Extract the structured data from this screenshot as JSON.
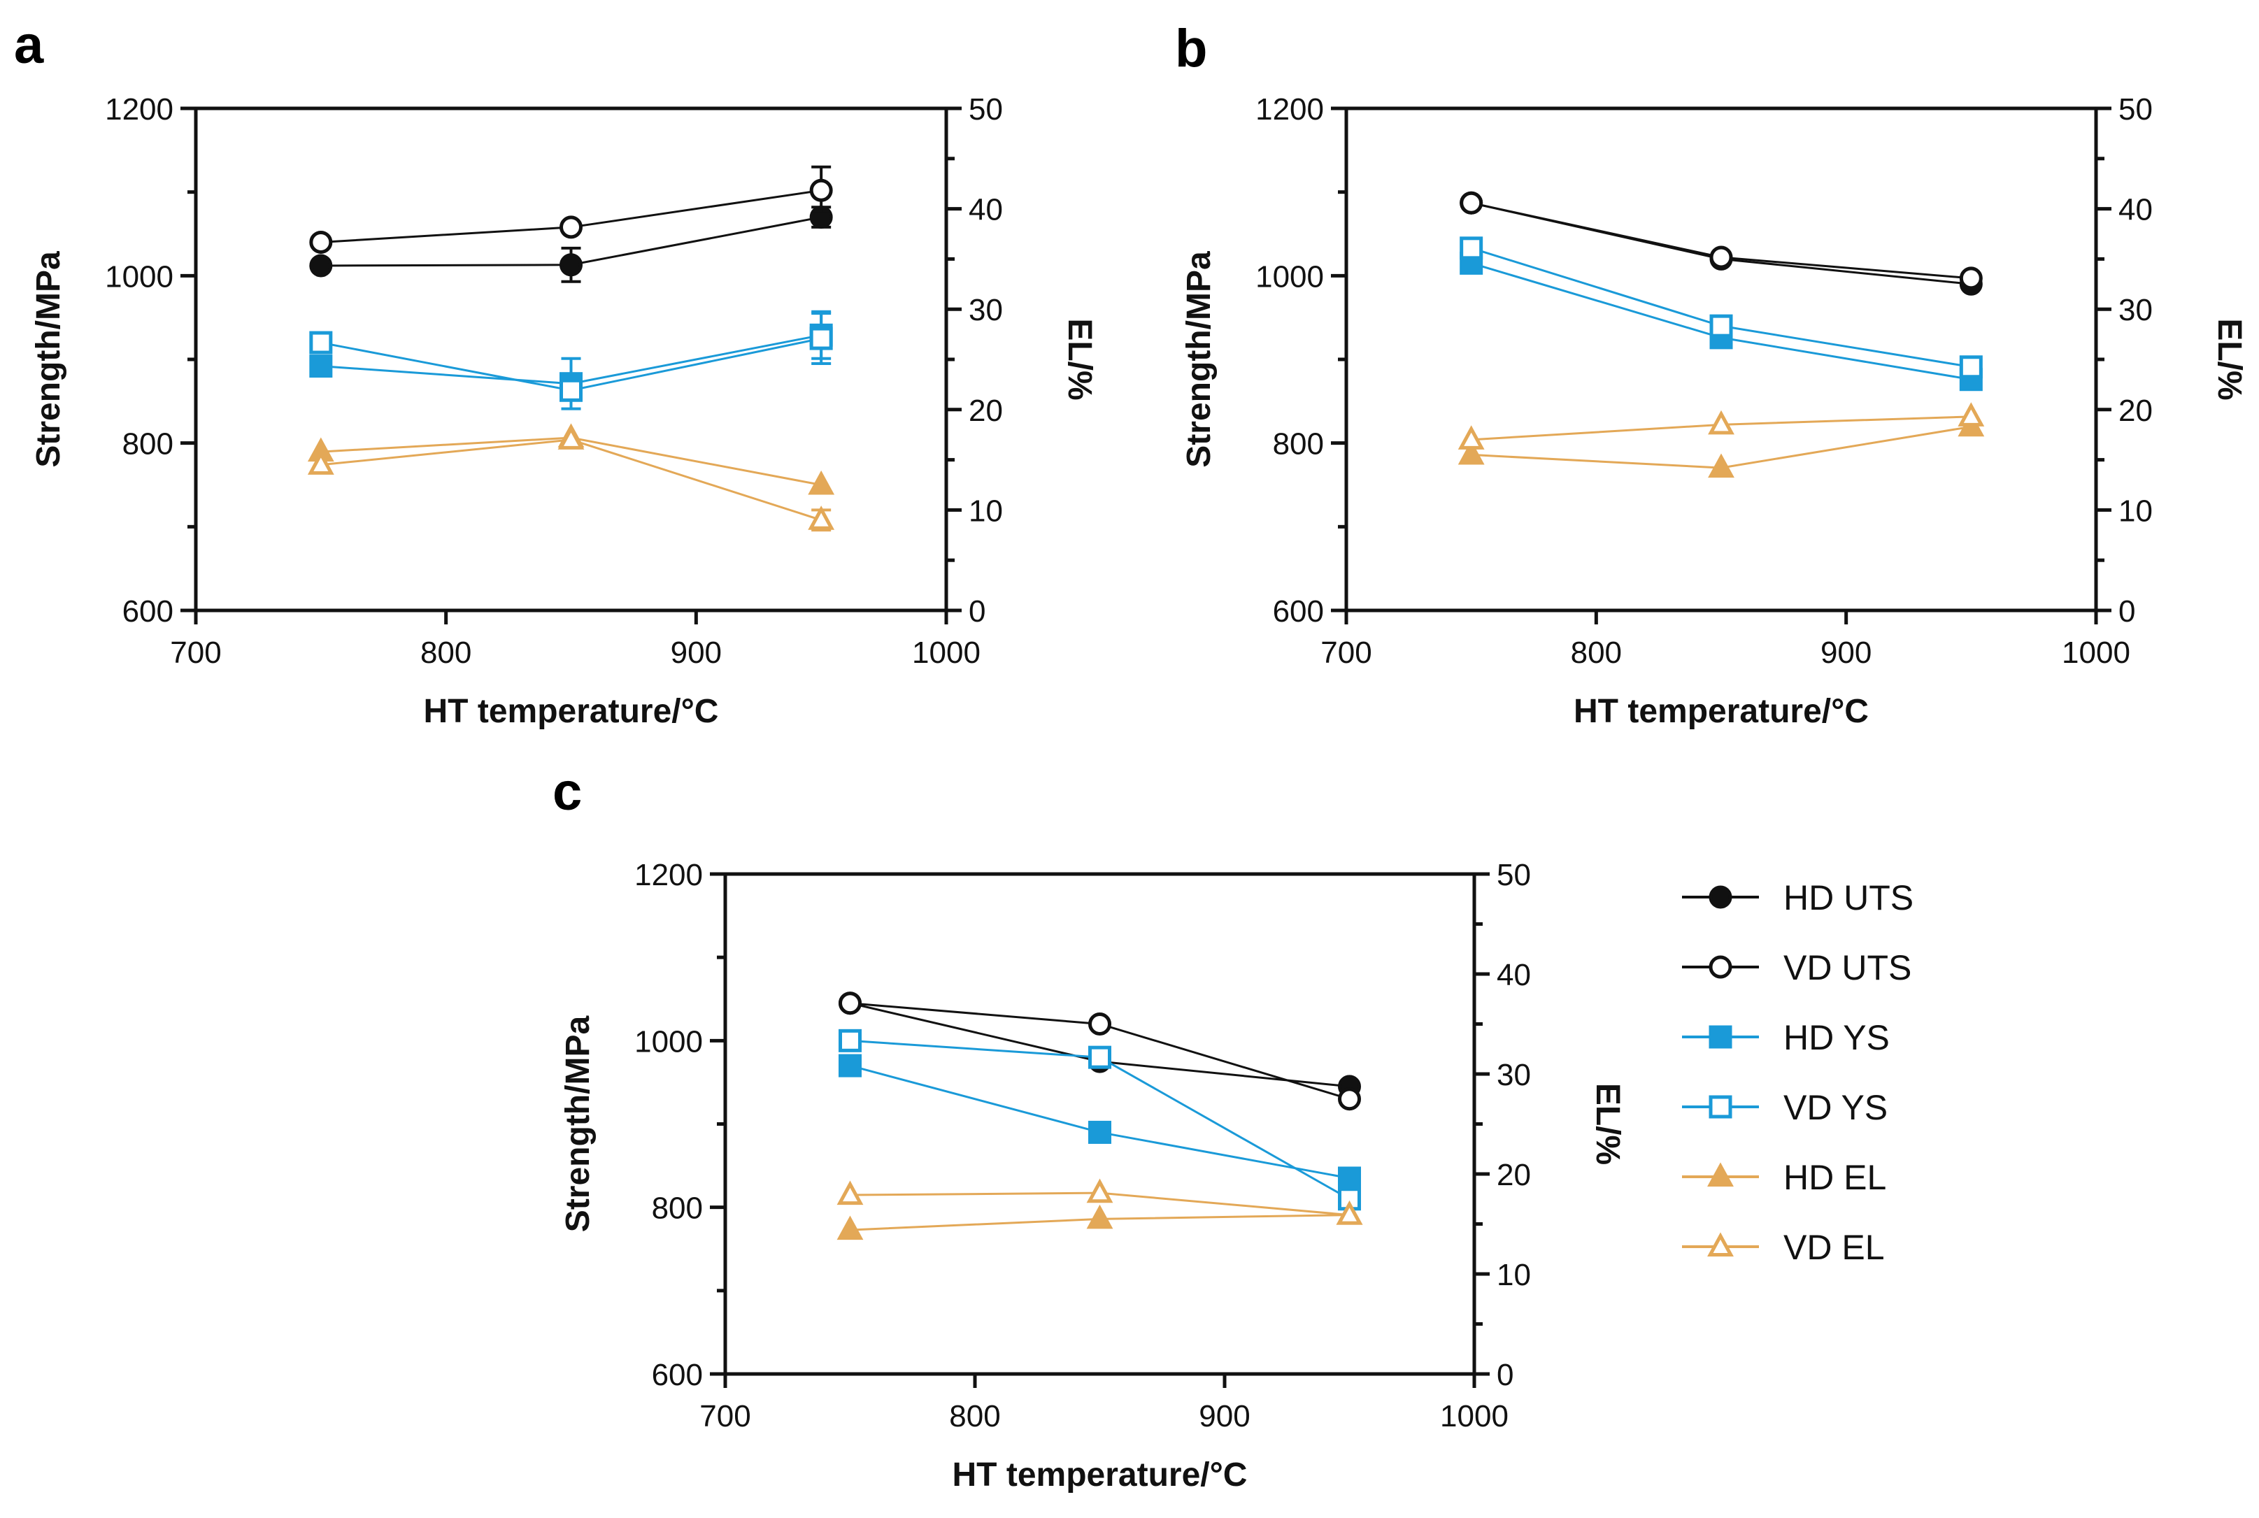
{
  "colors": {
    "black": "#111111",
    "blue": "#1a9ad8",
    "orange": "#e3a857"
  },
  "chart_data": [
    {
      "type": "line",
      "panel_label": "a",
      "xlabel": "HT temperature/°C",
      "ylabel": "Strength/MPa",
      "y2label": "EL/%",
      "xlim": [
        700,
        1000
      ],
      "ylim": [
        600,
        1200
      ],
      "y2lim": [
        0,
        50
      ],
      "xticks": [
        "700",
        "800",
        "900",
        "1000"
      ],
      "yticks": [
        "600",
        "800",
        "1000",
        "1200"
      ],
      "y2ticks": [
        "0",
        "10",
        "20",
        "30",
        "40",
        "50"
      ],
      "x": [
        750,
        850,
        950
      ],
      "series": [
        {
          "name": "HD UTS",
          "axis": "left",
          "values": [
            1012,
            1013,
            1070
          ],
          "errors": [
            0,
            20,
            12
          ]
        },
        {
          "name": "VD UTS",
          "axis": "left",
          "values": [
            1040,
            1058,
            1102
          ],
          "errors": [
            0,
            0,
            28
          ]
        },
        {
          "name": "HD YS",
          "axis": "left",
          "values": [
            892,
            871,
            929
          ],
          "errors": [
            0,
            30,
            28
          ]
        },
        {
          "name": "VD YS",
          "axis": "left",
          "values": [
            920,
            863,
            925
          ],
          "errors": [
            0,
            0,
            30
          ]
        },
        {
          "name": "HD EL",
          "axis": "right",
          "values": [
            15.8,
            17.2,
            12.5
          ],
          "errors": [
            0,
            0,
            0
          ]
        },
        {
          "name": "VD EL",
          "axis": "right",
          "values": [
            14.5,
            17.0,
            9.0
          ],
          "errors": [
            0,
            0,
            1
          ]
        }
      ]
    },
    {
      "type": "line",
      "panel_label": "b",
      "xlabel": "HT temperature/°C",
      "ylabel": "Strength/MPa",
      "y2label": "EL/%",
      "xlim": [
        700,
        1000
      ],
      "ylim": [
        600,
        1200
      ],
      "y2lim": [
        0,
        50
      ],
      "xticks": [
        "700",
        "800",
        "900",
        "1000"
      ],
      "yticks": [
        "600",
        "800",
        "1000",
        "1200"
      ],
      "y2ticks": [
        "0",
        "10",
        "20",
        "30",
        "40",
        "50"
      ],
      "x": [
        750,
        850,
        950
      ],
      "series": [
        {
          "name": "HD UTS",
          "axis": "left",
          "values": [
            1087,
            1020,
            990
          ],
          "errors": [
            0,
            0,
            0
          ]
        },
        {
          "name": "VD UTS",
          "axis": "left",
          "values": [
            1087,
            1022,
            997
          ],
          "errors": [
            0,
            0,
            0
          ]
        },
        {
          "name": "HD YS",
          "axis": "left",
          "values": [
            1015,
            926,
            876
          ],
          "errors": [
            0,
            0,
            0
          ]
        },
        {
          "name": "VD YS",
          "axis": "left",
          "values": [
            1033,
            940,
            891
          ],
          "errors": [
            0,
            0,
            0
          ]
        },
        {
          "name": "HD EL",
          "axis": "right",
          "values": [
            15.5,
            14.2,
            18.3
          ],
          "errors": [
            0,
            0,
            0
          ]
        },
        {
          "name": "VD EL",
          "axis": "right",
          "values": [
            17.0,
            18.5,
            19.3
          ],
          "errors": [
            0,
            0,
            0
          ]
        }
      ]
    },
    {
      "type": "line",
      "panel_label": "c",
      "xlabel": "HT temperature/°C",
      "ylabel": "Strength/MPa",
      "y2label": "EL/%",
      "xlim": [
        700,
        1000
      ],
      "ylim": [
        600,
        1200
      ],
      "y2lim": [
        0,
        50
      ],
      "xticks": [
        "700",
        "800",
        "900",
        "1000"
      ],
      "yticks": [
        "600",
        "800",
        "1000",
        "1200"
      ],
      "y2ticks": [
        "0",
        "10",
        "20",
        "30",
        "40",
        "50"
      ],
      "x": [
        750,
        850,
        950
      ],
      "series": [
        {
          "name": "HD UTS",
          "axis": "left",
          "values": [
            1045,
            975,
            945
          ],
          "errors": [
            0,
            0,
            0
          ]
        },
        {
          "name": "VD UTS",
          "axis": "left",
          "values": [
            1045,
            1020,
            930
          ],
          "errors": [
            0,
            0,
            0
          ]
        },
        {
          "name": "HD YS",
          "axis": "left",
          "values": [
            970,
            890,
            835
          ],
          "errors": [
            0,
            0,
            10
          ]
        },
        {
          "name": "VD YS",
          "axis": "left",
          "values": [
            1000,
            980,
            810
          ],
          "errors": [
            0,
            0,
            10
          ]
        },
        {
          "name": "HD EL",
          "axis": "right",
          "values": [
            14.4,
            15.5,
            15.9
          ],
          "errors": [
            0,
            0,
            0
          ]
        },
        {
          "name": "VD EL",
          "axis": "right",
          "values": [
            17.9,
            18.1,
            15.9
          ],
          "errors": [
            0,
            0,
            0
          ]
        }
      ]
    }
  ],
  "legend": {
    "items": [
      {
        "label": "HD UTS",
        "color": "#111111",
        "marker": "circle",
        "filled": true
      },
      {
        "label": "VD UTS",
        "color": "#111111",
        "marker": "circle",
        "filled": false
      },
      {
        "label": "HD YS",
        "color": "#1a9ad8",
        "marker": "square",
        "filled": true
      },
      {
        "label": "VD YS",
        "color": "#1a9ad8",
        "marker": "square",
        "filled": false
      },
      {
        "label": "HD EL",
        "color": "#e3a857",
        "marker": "triangle",
        "filled": true
      },
      {
        "label": "VD EL",
        "color": "#e3a857",
        "marker": "triangle",
        "filled": false
      }
    ]
  }
}
